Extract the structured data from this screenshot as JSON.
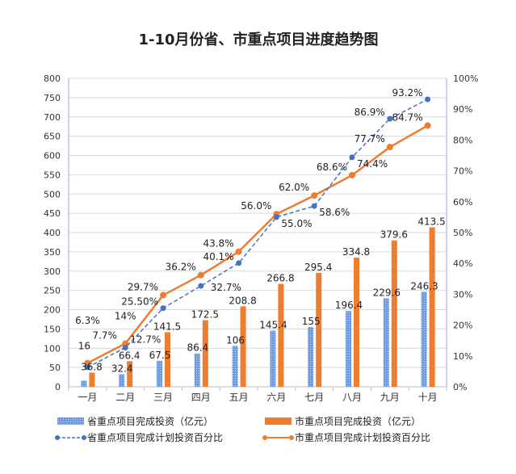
{
  "chart_data": {
    "type": "bar+line",
    "title": "1-10月份省、市重点项目进度趋势图",
    "categories": [
      "一月",
      "二月",
      "三月",
      "四月",
      "五月",
      "六月",
      "七月",
      "八月",
      "九月",
      "十月"
    ],
    "ylim_left": [
      0,
      800
    ],
    "yticks_left": [
      0,
      50,
      100,
      150,
      200,
      250,
      300,
      350,
      400,
      450,
      500,
      550,
      600,
      650,
      700,
      750,
      800
    ],
    "ylim_right": [
      0,
      100
    ],
    "yticks_right": [
      "0%",
      "10%",
      "20%",
      "30%",
      "40%",
      "50%",
      "60%",
      "70%",
      "80%",
      "90%",
      "100%"
    ],
    "grid": true,
    "legend_position": "bottom",
    "series": [
      {
        "name": "省重点项目完成投资（亿元）",
        "type": "bar",
        "axis": "left",
        "color": "#5b8bd6",
        "values": [
          16,
          32.4,
          67.5,
          86.4,
          106,
          145.4,
          155,
          196.4,
          229.6,
          246.3
        ],
        "labels": [
          "16",
          "32.4",
          "67.5",
          "86.4",
          "106",
          "145.4",
          "155",
          "196.4",
          "229.6",
          "246.3"
        ]
      },
      {
        "name": "市重点项目完成投资（亿元）",
        "type": "bar",
        "axis": "left",
        "color": "#ed7d31",
        "values": [
          36.8,
          66.4,
          141.5,
          172.5,
          208.8,
          266.8,
          295.4,
          334.8,
          379.6,
          413.5
        ],
        "labels": [
          "36.8",
          "66.4",
          "141.5",
          "172.5",
          "208.8",
          "266.8",
          "295.4",
          "334.8",
          "379.6",
          "413.5"
        ]
      },
      {
        "name": "省重点项目完成计划投资百分比",
        "type": "line",
        "axis": "right",
        "color": "#4472c4",
        "dashed": true,
        "values": [
          6.3,
          12.7,
          25.5,
          32.7,
          40.1,
          55.0,
          58.6,
          74.4,
          86.9,
          93.2
        ],
        "labels": [
          "6.3%",
          "12.7%",
          "25.50%",
          "32.7%",
          "40.1%",
          "55.0%",
          "58.6%",
          "74.4%",
          "86.9%",
          "93.2%"
        ]
      },
      {
        "name": "市重点项目完成计划投资百分比",
        "type": "line",
        "axis": "right",
        "color": "#ed7d31",
        "dashed": false,
        "values": [
          7.7,
          14,
          29.7,
          36.2,
          43.8,
          56.0,
          62.0,
          68.6,
          77.7,
          84.7
        ],
        "labels": [
          "7.7%",
          "14%",
          "29.7%",
          "36.2%",
          "43.8%",
          "56.0%",
          "62.0%",
          "68.6%",
          "77.7%",
          "84.7%"
        ]
      }
    ]
  }
}
